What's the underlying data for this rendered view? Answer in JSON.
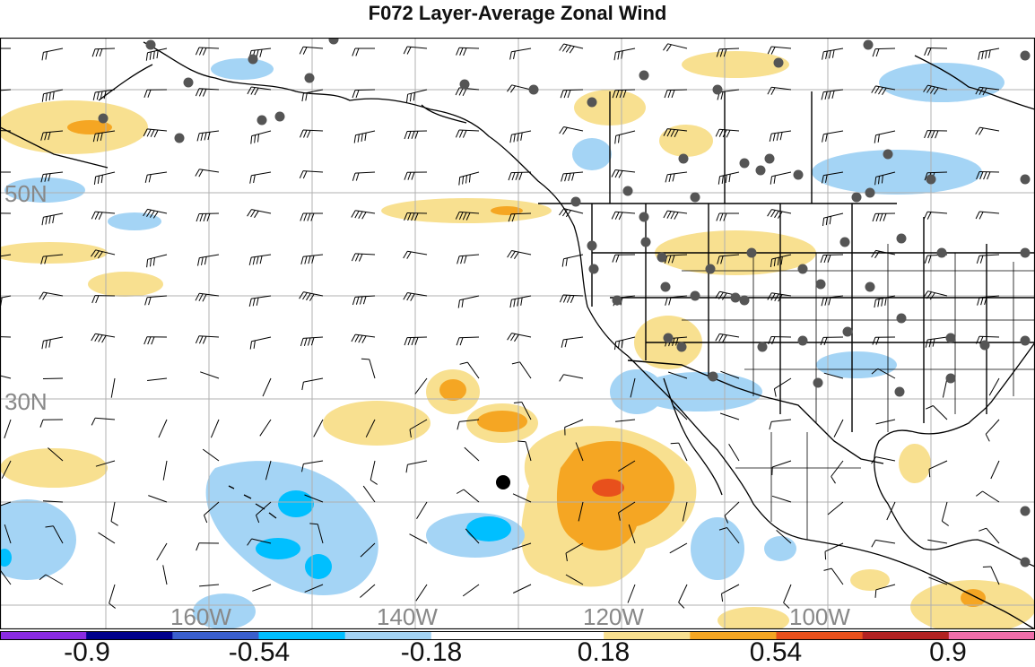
{
  "title": "F072 Layer-Average Zonal Wind",
  "lat_labels": [
    "50N",
    "30N"
  ],
  "lon_labels": [
    "160W",
    "140W",
    "120W",
    "100W"
  ],
  "colorbar": {
    "tick_labels": [
      "-0.9",
      "-0.54",
      "-0.18",
      "0.18",
      "0.54",
      "0.9"
    ],
    "colors": [
      "#8a2be2",
      "#00008b",
      "#3a5fcd",
      "#00bfff",
      "#a4d4f5",
      "#ffffff",
      "#ffffff",
      "#f8e090",
      "#f5a623",
      "#e8501c",
      "#b22222",
      "#f06eaa"
    ]
  }
}
